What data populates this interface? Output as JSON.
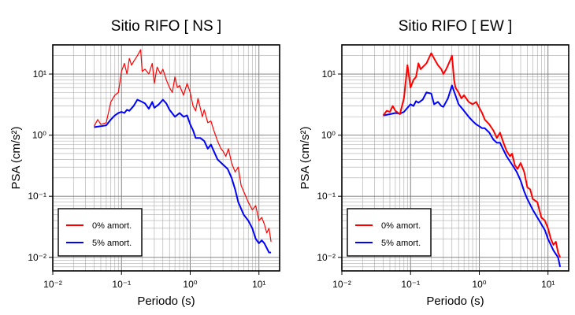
{
  "chart_data": [
    {
      "type": "line",
      "title": "Sitio RIFO [ NS ]",
      "xlabel": "Periodo (s)",
      "ylabel": "PSA (cm/s²)",
      "xscale": "log",
      "yscale": "log",
      "xlim": [
        0.01,
        20
      ],
      "ylim": [
        0.006,
        30
      ],
      "x_ticks": [
        "10⁻²",
        "10⁻¹",
        "10⁰",
        "10¹"
      ],
      "y_ticks": [
        "10⁻²",
        "10⁻¹",
        "10⁰",
        "10¹"
      ],
      "grid": true,
      "legend_position": "bottom-left",
      "series": [
        {
          "name": "0% amort.",
          "color": "#ff0000",
          "points": [
            [
              0.04,
              1.4
            ],
            [
              0.045,
              1.8
            ],
            [
              0.05,
              1.5
            ],
            [
              0.06,
              1.6
            ],
            [
              0.07,
              3.5
            ],
            [
              0.08,
              4.5
            ],
            [
              0.09,
              5
            ],
            [
              0.1,
              11
            ],
            [
              0.11,
              15
            ],
            [
              0.12,
              10
            ],
            [
              0.13,
              18
            ],
            [
              0.14,
              14
            ],
            [
              0.15,
              16
            ],
            [
              0.17,
              20
            ],
            [
              0.19,
              25
            ],
            [
              0.2,
              11
            ],
            [
              0.22,
              12
            ],
            [
              0.25,
              10
            ],
            [
              0.28,
              15
            ],
            [
              0.3,
              7
            ],
            [
              0.33,
              13
            ],
            [
              0.37,
              10
            ],
            [
              0.4,
              12
            ],
            [
              0.45,
              8
            ],
            [
              0.5,
              6
            ],
            [
              0.55,
              5
            ],
            [
              0.6,
              9
            ],
            [
              0.65,
              6
            ],
            [
              0.7,
              6.5
            ],
            [
              0.8,
              4.5
            ],
            [
              0.9,
              7
            ],
            [
              1,
              5
            ],
            [
              1.1,
              3
            ],
            [
              1.2,
              2.5
            ],
            [
              1.3,
              4
            ],
            [
              1.5,
              2
            ],
            [
              1.6,
              2.6
            ],
            [
              1.8,
              1.6
            ],
            [
              2,
              1.7
            ],
            [
              2.2,
              1.2
            ],
            [
              2.5,
              0.8
            ],
            [
              2.8,
              0.6
            ],
            [
              3,
              0.55
            ],
            [
              3.3,
              0.45
            ],
            [
              3.6,
              0.6
            ],
            [
              4,
              0.35
            ],
            [
              4.5,
              0.25
            ],
            [
              5,
              0.3
            ],
            [
              5.5,
              0.15
            ],
            [
              6,
              0.12
            ],
            [
              7,
              0.08
            ],
            [
              8,
              0.06
            ],
            [
              9,
              0.07
            ],
            [
              10,
              0.04
            ],
            [
              11,
              0.045
            ],
            [
              12,
              0.035
            ],
            [
              13,
              0.025
            ],
            [
              14,
              0.03
            ],
            [
              15,
              0.018
            ]
          ]
        },
        {
          "name": "5% amort.",
          "color": "#0000ff",
          "points": [
            [
              0.04,
              1.35
            ],
            [
              0.05,
              1.4
            ],
            [
              0.06,
              1.45
            ],
            [
              0.07,
              1.8
            ],
            [
              0.08,
              2.1
            ],
            [
              0.09,
              2.3
            ],
            [
              0.1,
              2.4
            ],
            [
              0.11,
              2.3
            ],
            [
              0.12,
              2.6
            ],
            [
              0.13,
              2.5
            ],
            [
              0.15,
              3.0
            ],
            [
              0.17,
              3.8
            ],
            [
              0.2,
              3.5
            ],
            [
              0.22,
              3.3
            ],
            [
              0.25,
              2.7
            ],
            [
              0.28,
              3.5
            ],
            [
              0.3,
              2.8
            ],
            [
              0.35,
              3.2
            ],
            [
              0.4,
              3.8
            ],
            [
              0.45,
              3.3
            ],
            [
              0.5,
              2.6
            ],
            [
              0.6,
              2.0
            ],
            [
              0.7,
              2.3
            ],
            [
              0.8,
              2.0
            ],
            [
              0.9,
              2.1
            ],
            [
              1.0,
              1.5
            ],
            [
              1.1,
              1.2
            ],
            [
              1.2,
              0.9
            ],
            [
              1.4,
              0.9
            ],
            [
              1.6,
              0.8
            ],
            [
              1.8,
              0.6
            ],
            [
              2,
              0.7
            ],
            [
              2.2,
              0.55
            ],
            [
              2.5,
              0.4
            ],
            [
              3,
              0.33
            ],
            [
              3.5,
              0.28
            ],
            [
              4,
              0.2
            ],
            [
              4.5,
              0.13
            ],
            [
              5,
              0.08
            ],
            [
              6,
              0.05
            ],
            [
              7,
              0.04
            ],
            [
              8,
              0.03
            ],
            [
              9,
              0.02
            ],
            [
              10,
              0.017
            ],
            [
              11,
              0.019
            ],
            [
              12,
              0.017
            ],
            [
              14,
              0.012
            ],
            [
              15,
              0.012
            ]
          ]
        }
      ]
    },
    {
      "type": "line",
      "title": "Sitio RIFO [ EW ]",
      "xlabel": "Periodo (s)",
      "ylabel": "PSA (cm/s²)",
      "xscale": "log",
      "yscale": "log",
      "xlim": [
        0.01,
        20
      ],
      "ylim": [
        0.006,
        30
      ],
      "x_ticks": [
        "10⁻²",
        "10⁻¹",
        "10⁰",
        "10¹"
      ],
      "y_ticks": [
        "10⁻²",
        "10⁻¹",
        "10⁰",
        "10¹"
      ],
      "grid": true,
      "legend_position": "bottom-left",
      "series": [
        {
          "name": "0% amort.",
          "color": "#ff0000",
          "points": [
            [
              0.04,
              2.1
            ],
            [
              0.045,
              2.5
            ],
            [
              0.05,
              2.4
            ],
            [
              0.055,
              3
            ],
            [
              0.06,
              2.5
            ],
            [
              0.07,
              2.2
            ],
            [
              0.08,
              4
            ],
            [
              0.09,
              14
            ],
            [
              0.1,
              6
            ],
            [
              0.11,
              8
            ],
            [
              0.12,
              9
            ],
            [
              0.13,
              15
            ],
            [
              0.14,
              12
            ],
            [
              0.15,
              13
            ],
            [
              0.17,
              15
            ],
            [
              0.2,
              22
            ],
            [
              0.22,
              18
            ],
            [
              0.25,
              14
            ],
            [
              0.28,
              12
            ],
            [
              0.3,
              10
            ],
            [
              0.33,
              12
            ],
            [
              0.37,
              16
            ],
            [
              0.4,
              20
            ],
            [
              0.43,
              8
            ],
            [
              0.45,
              6
            ],
            [
              0.5,
              5
            ],
            [
              0.55,
              4
            ],
            [
              0.6,
              4.5
            ],
            [
              0.7,
              3.5
            ],
            [
              0.8,
              3.2
            ],
            [
              0.9,
              3.5
            ],
            [
              1,
              2.8
            ],
            [
              1.1,
              2.3
            ],
            [
              1.2,
              1.8
            ],
            [
              1.4,
              1.5
            ],
            [
              1.6,
              1.2
            ],
            [
              1.8,
              0.9
            ],
            [
              2,
              1.1
            ],
            [
              2.2,
              0.8
            ],
            [
              2.5,
              0.55
            ],
            [
              2.8,
              0.45
            ],
            [
              3,
              0.5
            ],
            [
              3.3,
              0.32
            ],
            [
              3.6,
              0.28
            ],
            [
              4,
              0.35
            ],
            [
              4.5,
              0.25
            ],
            [
              5,
              0.14
            ],
            [
              5.5,
              0.13
            ],
            [
              6,
              0.09
            ],
            [
              7,
              0.08
            ],
            [
              8,
              0.045
            ],
            [
              9,
              0.04
            ],
            [
              10,
              0.03
            ],
            [
              11,
              0.02
            ],
            [
              12,
              0.016
            ],
            [
              13,
              0.018
            ],
            [
              14,
              0.012
            ],
            [
              15,
              0.01
            ]
          ]
        },
        {
          "name": "5% amort.",
          "color": "#0000ff",
          "points": [
            [
              0.04,
              2.1
            ],
            [
              0.05,
              2.2
            ],
            [
              0.06,
              2.3
            ],
            [
              0.07,
              2.25
            ],
            [
              0.08,
              2.4
            ],
            [
              0.09,
              2.8
            ],
            [
              0.1,
              3.2
            ],
            [
              0.11,
              3.0
            ],
            [
              0.12,
              3.6
            ],
            [
              0.13,
              3.4
            ],
            [
              0.15,
              3.8
            ],
            [
              0.17,
              5.0
            ],
            [
              0.2,
              4.8
            ],
            [
              0.22,
              3.2
            ],
            [
              0.25,
              3.5
            ],
            [
              0.28,
              3.0
            ],
            [
              0.3,
              2.9
            ],
            [
              0.35,
              4.0
            ],
            [
              0.4,
              6.5
            ],
            [
              0.45,
              4.5
            ],
            [
              0.5,
              3.2
            ],
            [
              0.6,
              2.5
            ],
            [
              0.7,
              2.0
            ],
            [
              0.8,
              1.7
            ],
            [
              0.9,
              1.5
            ],
            [
              1.0,
              1.4
            ],
            [
              1.1,
              1.3
            ],
            [
              1.2,
              1.3
            ],
            [
              1.4,
              1.1
            ],
            [
              1.6,
              0.85
            ],
            [
              1.8,
              0.75
            ],
            [
              2,
              0.75
            ],
            [
              2.2,
              0.6
            ],
            [
              2.5,
              0.45
            ],
            [
              3,
              0.33
            ],
            [
              3.5,
              0.25
            ],
            [
              4,
              0.18
            ],
            [
              4.5,
              0.12
            ],
            [
              5,
              0.09
            ],
            [
              6,
              0.06
            ],
            [
              7,
              0.045
            ],
            [
              8,
              0.035
            ],
            [
              9,
              0.028
            ],
            [
              10,
              0.02
            ],
            [
              11,
              0.016
            ],
            [
              12,
              0.013
            ],
            [
              14,
              0.01
            ],
            [
              15,
              0.007
            ]
          ]
        }
      ]
    }
  ]
}
